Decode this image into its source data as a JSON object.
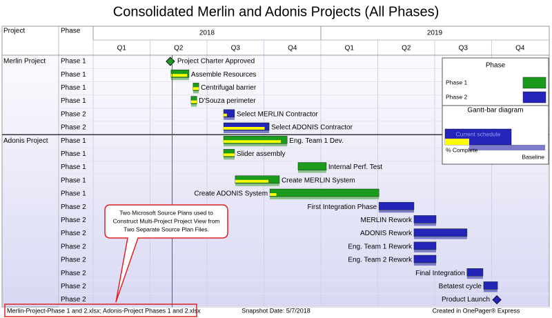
{
  "chart_data": {
    "type": "gantt",
    "title": "Consolidated Merlin and Adonis Projects (All Phases)",
    "column_headers": [
      "Project",
      "Phase"
    ],
    "xlim": [
      2018,
      2020
    ],
    "year_ticks": [
      2018,
      2019
    ],
    "quarter_ticks": [
      {
        "value": 2018,
        "label": "Q1"
      },
      {
        "value": 2018.25,
        "label": "Q2"
      },
      {
        "value": 2018.5,
        "label": "Q3"
      },
      {
        "value": 2018.75,
        "label": "Q4"
      },
      {
        "value": 2019,
        "label": "Q1"
      },
      {
        "value": 2019.25,
        "label": "Q2"
      },
      {
        "value": 2019.5,
        "label": "Q3"
      },
      {
        "value": 2019.75,
        "label": "Q4"
      }
    ],
    "snapshot_line": 2018.347,
    "groups": [
      {
        "name": "Merlin Project",
        "tasks": [
          {
            "name": "Project Charter Approved",
            "phase": "Phase 1",
            "milestone": true,
            "start": 2018.339,
            "label_side": "right"
          },
          {
            "name": "Assemble Resources",
            "phase": "Phase 1",
            "start": 2018.342,
            "end": 2018.421,
            "complete": 90,
            "label_side": "right"
          },
          {
            "name": "Centrifugal barrier",
            "phase": "Phase 1",
            "start": 2018.439,
            "end": 2018.464,
            "complete": 100,
            "label_side": "right"
          },
          {
            "name": "D'Souza perimeter",
            "phase": "Phase 1",
            "start": 2018.43,
            "end": 2018.455,
            "complete": 100,
            "label_side": "right"
          },
          {
            "name": "Select MERLIN Contractor",
            "phase": "Phase 2",
            "start": 2018.573,
            "end": 2018.621,
            "complete": 30,
            "label_side": "right"
          },
          {
            "name": "Select ADONIS Contractor",
            "phase": "Phase 2",
            "start": 2018.573,
            "end": 2018.773,
            "complete": 90,
            "label_side": "right"
          }
        ]
      },
      {
        "name": "Adonis Project",
        "tasks": [
          {
            "name": "Eng. Team 1 Dev.",
            "phase": "Phase 1",
            "start": 2018.573,
            "end": 2018.852,
            "complete": 90,
            "label_side": "right"
          },
          {
            "name": "Slider assembly",
            "phase": "Phase 1",
            "start": 2018.573,
            "end": 2018.621,
            "complete": 100,
            "label_side": "right"
          },
          {
            "name": "Internal Perf. Test",
            "phase": "Phase 1",
            "start": 2018.9,
            "end": 2019.024,
            "complete": 0,
            "label_side": "right"
          },
          {
            "name": "Create MERLIN System",
            "phase": "Phase 1",
            "start": 2018.624,
            "end": 2018.818,
            "complete": 75,
            "label_side": "right"
          },
          {
            "name": "Create ADONIS System",
            "phase": "Phase 1",
            "start": 2018.776,
            "end": 2019.255,
            "complete": 6,
            "label_side": "left"
          },
          {
            "name": "First Integration Phase",
            "phase": "Phase 2",
            "start": 2019.255,
            "end": 2019.409,
            "complete": 0,
            "label_side": "left"
          },
          {
            "name": "MERLIN Rework",
            "phase": "Phase 2",
            "start": 2019.409,
            "end": 2019.506,
            "complete": 0,
            "label_side": "left"
          },
          {
            "name": "ADONIS Rework",
            "phase": "Phase 2",
            "start": 2019.409,
            "end": 2019.642,
            "complete": 0,
            "label_side": "left"
          },
          {
            "name": "Eng. Team 1 Rework",
            "phase": "Phase 2",
            "start": 2019.409,
            "end": 2019.506,
            "complete": 0,
            "label_side": "left"
          },
          {
            "name": "Eng. Team 2 Rework",
            "phase": "Phase 2",
            "start": 2019.409,
            "end": 2019.506,
            "complete": 0,
            "label_side": "left"
          },
          {
            "name": "Final Integration",
            "phase": "Phase 2",
            "start": 2019.642,
            "end": 2019.712,
            "complete": 0,
            "label_side": "left"
          },
          {
            "name": "Betatest cycle",
            "phase": "Phase 2",
            "start": 2019.715,
            "end": 2019.776,
            "complete": 0,
            "label_side": "left"
          },
          {
            "name": "Product Launch",
            "phase": "Phase 2",
            "milestone": true,
            "start": 2019.773,
            "label_side": "left"
          }
        ]
      }
    ],
    "legend": {
      "title": "Phase",
      "items": [
        {
          "name": "Phase 1",
          "color": "#1c9a1c",
          "baseline_color": "#8cc08c"
        },
        {
          "name": "Phase 2",
          "color": "#2424b8",
          "baseline_color": "#7c7cc8"
        }
      ]
    },
    "bar_legend": {
      "title": "Gantt-bar diagram",
      "current": "Current schedule",
      "complete": "% Complete",
      "baseline": "Baseline"
    },
    "complete_color": "#ffff00",
    "annotation_lines": [
      "Two Microsoft Source Plans used to",
      "Construct Multi-Project Project View from",
      "Two Separate Source Plan Files."
    ],
    "footer": {
      "source": "Merlin-Project-Phase 1 and 2.xlsx; Adonis-Project Phases 1 and 2.xlsx",
      "snapshot": "Snapshot Date: 5/7/2018",
      "credit": "Created in OnePager® Express"
    }
  }
}
